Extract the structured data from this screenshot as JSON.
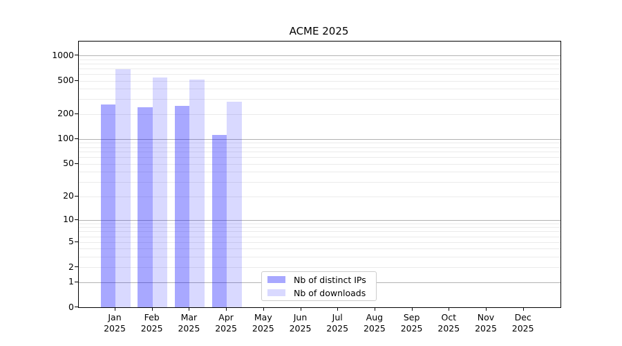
{
  "title": "ACME 2025",
  "legend": {
    "entries": [
      "Nb of distinct IPs",
      "Nb of downloads"
    ]
  },
  "chart_data": {
    "type": "bar",
    "title": "ACME 2025",
    "categories": [
      "Jan",
      "Feb",
      "Mar",
      "Apr",
      "May",
      "Jun",
      "Jul",
      "Aug",
      "Sep",
      "Oct",
      "Nov",
      "Dec"
    ],
    "category_second_line": "2025",
    "series": [
      {
        "name": "Nb of distinct IPs",
        "color": "rgba(0,0,255,0.34)",
        "values": [
          260,
          240,
          250,
          113,
          null,
          null,
          null,
          null,
          null,
          null,
          null,
          null
        ]
      },
      {
        "name": "Nb of downloads",
        "color": "rgba(0,0,255,0.15)",
        "values": [
          685,
          545,
          515,
          280,
          null,
          null,
          null,
          null,
          null,
          null,
          null,
          null
        ]
      }
    ],
    "xlabel": "",
    "ylabel": "",
    "y_ticks": [
      0,
      1,
      2,
      5,
      10,
      20,
      50,
      100,
      200,
      500,
      1000
    ],
    "y_minor_gridlines": [
      2,
      3,
      4,
      5,
      6,
      7,
      8,
      9,
      20,
      30,
      40,
      50,
      60,
      70,
      80,
      90,
      200,
      300,
      400,
      500,
      600,
      700,
      800,
      900
    ],
    "y_major_gridlines": [
      1,
      10,
      100,
      1000
    ],
    "y_scale": "log1p",
    "ylim": [
      0,
      1460
    ],
    "grid": "horizontal",
    "legend_position": "lower-center-inside"
  }
}
